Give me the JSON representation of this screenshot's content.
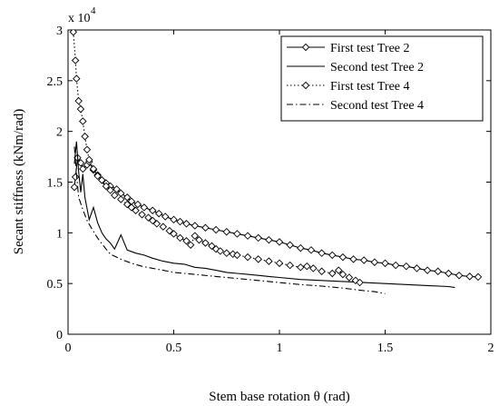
{
  "chart_data": {
    "type": "line",
    "title": "",
    "xlabel": "Stem base rotation θ (rad)",
    "ylabel": "Secant stiffness (kNm/rad)",
    "y_multiplier_label": "x 10",
    "y_multiplier_exponent": "4",
    "xlim": [
      0,
      2
    ],
    "ylim": [
      0,
      30000
    ],
    "xticks": [
      0,
      0.5,
      1,
      1.5,
      2
    ],
    "xtick_labels": [
      "0",
      "0.5",
      "1",
      "1.5",
      "2"
    ],
    "yticks": [
      0,
      5000,
      10000,
      15000,
      20000,
      25000,
      30000
    ],
    "ytick_labels": [
      "0",
      "0.5",
      "1",
      "1.5",
      "2",
      "2.5",
      "3"
    ],
    "grid": false,
    "legend_position": "top-right",
    "series": [
      {
        "name": "First test Tree 2",
        "style": "solid-diamond",
        "values": [
          [
            0.03,
            14500
          ],
          [
            0.035,
            15500
          ],
          [
            0.045,
            17400
          ],
          [
            0.06,
            16900
          ],
          [
            0.07,
            16300
          ],
          [
            0.09,
            16700
          ],
          [
            0.1,
            17000
          ],
          [
            0.12,
            16200
          ],
          [
            0.14,
            15700
          ],
          [
            0.16,
            15200
          ],
          [
            0.18,
            14900
          ],
          [
            0.2,
            14600
          ],
          [
            0.23,
            14300
          ],
          [
            0.25,
            13900
          ],
          [
            0.28,
            13500
          ],
          [
            0.3,
            13100
          ],
          [
            0.33,
            12800
          ],
          [
            0.36,
            12500
          ],
          [
            0.4,
            12200
          ],
          [
            0.43,
            11900
          ],
          [
            0.46,
            11600
          ],
          [
            0.5,
            11300
          ],
          [
            0.53,
            11100
          ],
          [
            0.56,
            10900
          ],
          [
            0.6,
            10700
          ],
          [
            0.65,
            10500
          ],
          [
            0.7,
            10300
          ],
          [
            0.75,
            10100
          ],
          [
            0.8,
            9900
          ],
          [
            0.85,
            9700
          ],
          [
            0.9,
            9500
          ],
          [
            0.95,
            9300
          ],
          [
            1.0,
            9100
          ],
          [
            1.05,
            8800
          ],
          [
            1.1,
            8500
          ],
          [
            1.15,
            8300
          ],
          [
            1.2,
            8000
          ],
          [
            1.25,
            7800
          ],
          [
            1.3,
            7600
          ],
          [
            1.35,
            7400
          ],
          [
            1.4,
            7300
          ],
          [
            1.45,
            7100
          ],
          [
            1.5,
            7000
          ],
          [
            1.55,
            6800
          ],
          [
            1.6,
            6700
          ],
          [
            1.65,
            6500
          ],
          [
            1.7,
            6300
          ],
          [
            1.75,
            6200
          ],
          [
            1.8,
            6000
          ],
          [
            1.85,
            5800
          ],
          [
            1.9,
            5700
          ],
          [
            1.94,
            5650
          ]
        ]
      },
      {
        "name": "Second test Tree 2",
        "style": "solid",
        "values": [
          [
            0.03,
            16800
          ],
          [
            0.04,
            19000
          ],
          [
            0.05,
            16000
          ],
          [
            0.06,
            14000
          ],
          [
            0.07,
            15800
          ],
          [
            0.08,
            13500
          ],
          [
            0.1,
            11300
          ],
          [
            0.12,
            12500
          ],
          [
            0.14,
            11000
          ],
          [
            0.16,
            10000
          ],
          [
            0.18,
            9400
          ],
          [
            0.2,
            9000
          ],
          [
            0.22,
            8400
          ],
          [
            0.25,
            9800
          ],
          [
            0.28,
            8300
          ],
          [
            0.32,
            8000
          ],
          [
            0.36,
            7800
          ],
          [
            0.4,
            7500
          ],
          [
            0.45,
            7200
          ],
          [
            0.5,
            7000
          ],
          [
            0.55,
            6900
          ],
          [
            0.6,
            6600
          ],
          [
            0.65,
            6500
          ],
          [
            0.7,
            6300
          ],
          [
            0.75,
            6100
          ],
          [
            0.8,
            6000
          ],
          [
            0.85,
            5900
          ],
          [
            0.9,
            5800
          ],
          [
            0.95,
            5700
          ],
          [
            1.0,
            5600
          ],
          [
            1.1,
            5400
          ],
          [
            1.2,
            5300
          ],
          [
            1.3,
            5200
          ],
          [
            1.4,
            5100
          ],
          [
            1.5,
            5000
          ],
          [
            1.6,
            4900
          ],
          [
            1.7,
            4800
          ],
          [
            1.8,
            4700
          ],
          [
            1.83,
            4600
          ]
        ]
      },
      {
        "name": "First test Tree 4",
        "style": "dotted-diamond",
        "values": [
          [
            0.025,
            29800
          ],
          [
            0.035,
            27000
          ],
          [
            0.04,
            25200
          ],
          [
            0.05,
            23000
          ],
          [
            0.06,
            22200
          ],
          [
            0.07,
            21000
          ],
          [
            0.08,
            19500
          ],
          [
            0.09,
            18200
          ],
          [
            0.1,
            17200
          ],
          [
            0.12,
            16300
          ],
          [
            0.14,
            15600
          ],
          [
            0.16,
            15200
          ],
          [
            0.18,
            14600
          ],
          [
            0.2,
            14200
          ],
          [
            0.22,
            13700
          ],
          [
            0.25,
            13300
          ],
          [
            0.28,
            12800
          ],
          [
            0.3,
            12500
          ],
          [
            0.32,
            12200
          ],
          [
            0.35,
            11800
          ],
          [
            0.38,
            11500
          ],
          [
            0.4,
            11200
          ],
          [
            0.42,
            10900
          ],
          [
            0.45,
            10600
          ],
          [
            0.48,
            10200
          ],
          [
            0.5,
            9900
          ],
          [
            0.53,
            9500
          ],
          [
            0.56,
            9200
          ],
          [
            0.58,
            8800
          ],
          [
            0.6,
            9700
          ],
          [
            0.62,
            9300
          ],
          [
            0.65,
            9000
          ],
          [
            0.68,
            8700
          ],
          [
            0.7,
            8400
          ],
          [
            0.72,
            8200
          ],
          [
            0.75,
            8000
          ],
          [
            0.78,
            7900
          ],
          [
            0.8,
            7800
          ],
          [
            0.85,
            7600
          ],
          [
            0.9,
            7400
          ],
          [
            0.95,
            7200
          ],
          [
            1.0,
            7000
          ],
          [
            1.05,
            6800
          ],
          [
            1.1,
            6600
          ],
          [
            1.13,
            6700
          ],
          [
            1.16,
            6500
          ],
          [
            1.2,
            6200
          ],
          [
            1.25,
            6000
          ],
          [
            1.28,
            6300
          ],
          [
            1.3,
            5900
          ],
          [
            1.33,
            5600
          ],
          [
            1.36,
            5300
          ],
          [
            1.38,
            5100
          ]
        ]
      },
      {
        "name": "Second test Tree 4",
        "style": "dashdot",
        "values": [
          [
            0.03,
            18500
          ],
          [
            0.04,
            15800
          ],
          [
            0.05,
            13500
          ],
          [
            0.07,
            12300
          ],
          [
            0.09,
            11200
          ],
          [
            0.11,
            10500
          ],
          [
            0.13,
            9800
          ],
          [
            0.15,
            9200
          ],
          [
            0.18,
            8400
          ],
          [
            0.2,
            7900
          ],
          [
            0.25,
            7400
          ],
          [
            0.3,
            7000
          ],
          [
            0.35,
            6700
          ],
          [
            0.4,
            6500
          ],
          [
            0.45,
            6300
          ],
          [
            0.5,
            6100
          ],
          [
            0.6,
            5900
          ],
          [
            0.7,
            5700
          ],
          [
            0.8,
            5500
          ],
          [
            0.9,
            5300
          ],
          [
            1.0,
            5100
          ],
          [
            1.1,
            4900
          ],
          [
            1.2,
            4750
          ],
          [
            1.3,
            4550
          ],
          [
            1.4,
            4300
          ],
          [
            1.45,
            4200
          ],
          [
            1.5,
            4000
          ]
        ]
      }
    ]
  }
}
